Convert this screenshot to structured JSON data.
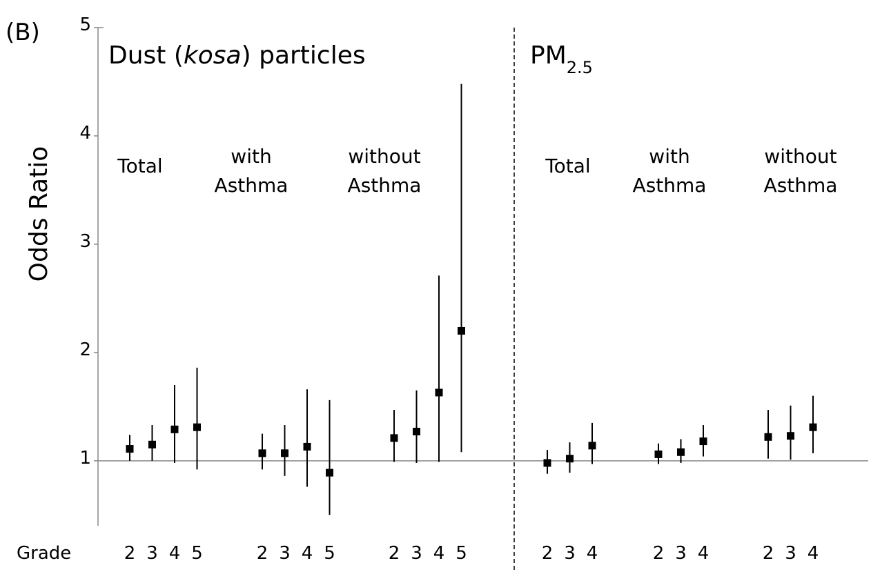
{
  "chart_data": {
    "type": "errorbar",
    "panel_label": "(B)",
    "ylabel": "Odds Ratio",
    "xlabel": "Grade",
    "ylim": [
      0.4,
      5
    ],
    "yticks": [
      1,
      2,
      3,
      4,
      5
    ],
    "reference_line": 1,
    "color": "#000000",
    "panels": [
      {
        "title": [
          "Dust (",
          "kosa",
          ") particles"
        ],
        "groups": [
          {
            "name": [
              "Total"
            ],
            "categories": [
              "2",
              "3",
              "4",
              "5"
            ],
            "values": [
              1.11,
              1.15,
              1.29,
              1.31
            ],
            "lower": [
              1.0,
              1.0,
              0.98,
              0.92
            ],
            "upper": [
              1.24,
              1.33,
              1.7,
              1.86
            ]
          },
          {
            "name": [
              "with",
              "Asthma"
            ],
            "categories": [
              "2",
              "3",
              "4",
              "5"
            ],
            "values": [
              1.07,
              1.07,
              1.13,
              0.89
            ],
            "lower": [
              0.92,
              0.86,
              0.76,
              0.5
            ],
            "upper": [
              1.25,
              1.33,
              1.66,
              1.56
            ]
          },
          {
            "name": [
              "without",
              "Asthma"
            ],
            "categories": [
              "2",
              "3",
              "4",
              "5"
            ],
            "values": [
              1.21,
              1.27,
              1.63,
              2.2
            ],
            "lower": [
              0.99,
              0.98,
              0.99,
              1.08
            ],
            "upper": [
              1.47,
              1.65,
              2.71,
              4.48
            ]
          }
        ]
      },
      {
        "title": [
          "PM",
          "2.5"
        ],
        "groups": [
          {
            "name": [
              "Total"
            ],
            "categories": [
              "2",
              "3",
              "4"
            ],
            "values": [
              0.98,
              1.02,
              1.14
            ],
            "lower": [
              0.88,
              0.89,
              0.97
            ],
            "upper": [
              1.1,
              1.17,
              1.35
            ]
          },
          {
            "name": [
              "with",
              "Asthma"
            ],
            "categories": [
              "2",
              "3",
              "4"
            ],
            "values": [
              1.06,
              1.08,
              1.18
            ],
            "lower": [
              0.97,
              0.98,
              1.04
            ],
            "upper": [
              1.16,
              1.2,
              1.33
            ]
          },
          {
            "name": [
              "without",
              "Asthma"
            ],
            "categories": [
              "2",
              "3",
              "4"
            ],
            "values": [
              1.22,
              1.23,
              1.31
            ],
            "lower": [
              1.02,
              1.01,
              1.07
            ],
            "upper": [
              1.47,
              1.51,
              1.6
            ]
          }
        ]
      }
    ]
  }
}
